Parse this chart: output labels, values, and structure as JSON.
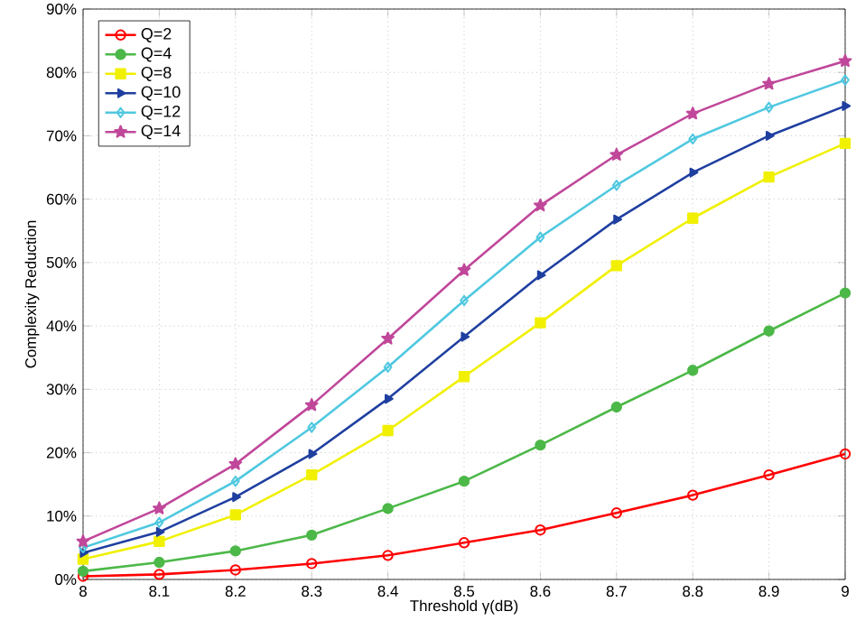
{
  "chart_data": {
    "type": "line",
    "xlabel": "Threshold γ(dB)",
    "ylabel": "Complexity Reduction",
    "x": [
      8,
      8.1,
      8.2,
      8.3,
      8.4,
      8.5,
      8.6,
      8.7,
      8.8,
      8.9,
      9
    ],
    "series": [
      {
        "name": "Q=2",
        "color": "#ff0000",
        "marker": "circle",
        "values": [
          0.5,
          0.8,
          1.5,
          2.5,
          3.8,
          5.8,
          7.8,
          10.5,
          13.3,
          16.5,
          19.8
        ]
      },
      {
        "name": "Q=4",
        "color": "#4cb848",
        "marker": "circle",
        "values": [
          1.3,
          2.7,
          4.5,
          7.0,
          11.2,
          15.5,
          21.2,
          27.2,
          33,
          39.2,
          45.2
        ]
      },
      {
        "name": "Q=8",
        "color": "#f0f000",
        "marker": "square",
        "values": [
          3.2,
          6.0,
          10.2,
          16.5,
          23.5,
          32,
          40.5,
          49.5,
          57,
          63.5,
          68.8
        ]
      },
      {
        "name": "Q=10",
        "color": "#1f3fa0",
        "marker": "triangle",
        "values": [
          4.2,
          7.5,
          13,
          19.8,
          28.5,
          38.3,
          48,
          56.8,
          64.2,
          70,
          74.7
        ]
      },
      {
        "name": "Q=12",
        "color": "#4fc8e0",
        "marker": "diamond",
        "values": [
          5.0,
          9.0,
          15.5,
          24,
          33.5,
          44,
          54,
          62.2,
          69.5,
          74.5,
          78.8
        ]
      },
      {
        "name": "Q=14",
        "color": "#c0479a",
        "marker": "star",
        "values": [
          6.0,
          11.2,
          18.2,
          27.5,
          38,
          48.8,
          59,
          67,
          73.5,
          78.2,
          81.8
        ]
      }
    ],
    "xlim": [
      8,
      9
    ],
    "xticks": [
      8,
      8.1,
      8.2,
      8.3,
      8.4,
      8.5,
      8.6,
      8.7,
      8.8,
      8.9,
      9
    ],
    "ylim": [
      0,
      90
    ],
    "yticks": [
      {
        "value": 0,
        "label": "0%"
      },
      {
        "value": 10,
        "label": "10%"
      },
      {
        "value": 20,
        "label": "20%"
      },
      {
        "value": 30,
        "label": "30%"
      },
      {
        "value": 40,
        "label": "40%"
      },
      {
        "value": 50,
        "label": "50%"
      },
      {
        "value": 60,
        "label": "60%"
      },
      {
        "value": 70,
        "label": "70%"
      },
      {
        "value": 80,
        "label": "80%"
      },
      {
        "value": 90,
        "label": "90%"
      }
    ],
    "grid": true,
    "legend": "top left",
    "line_style": "solid"
  }
}
